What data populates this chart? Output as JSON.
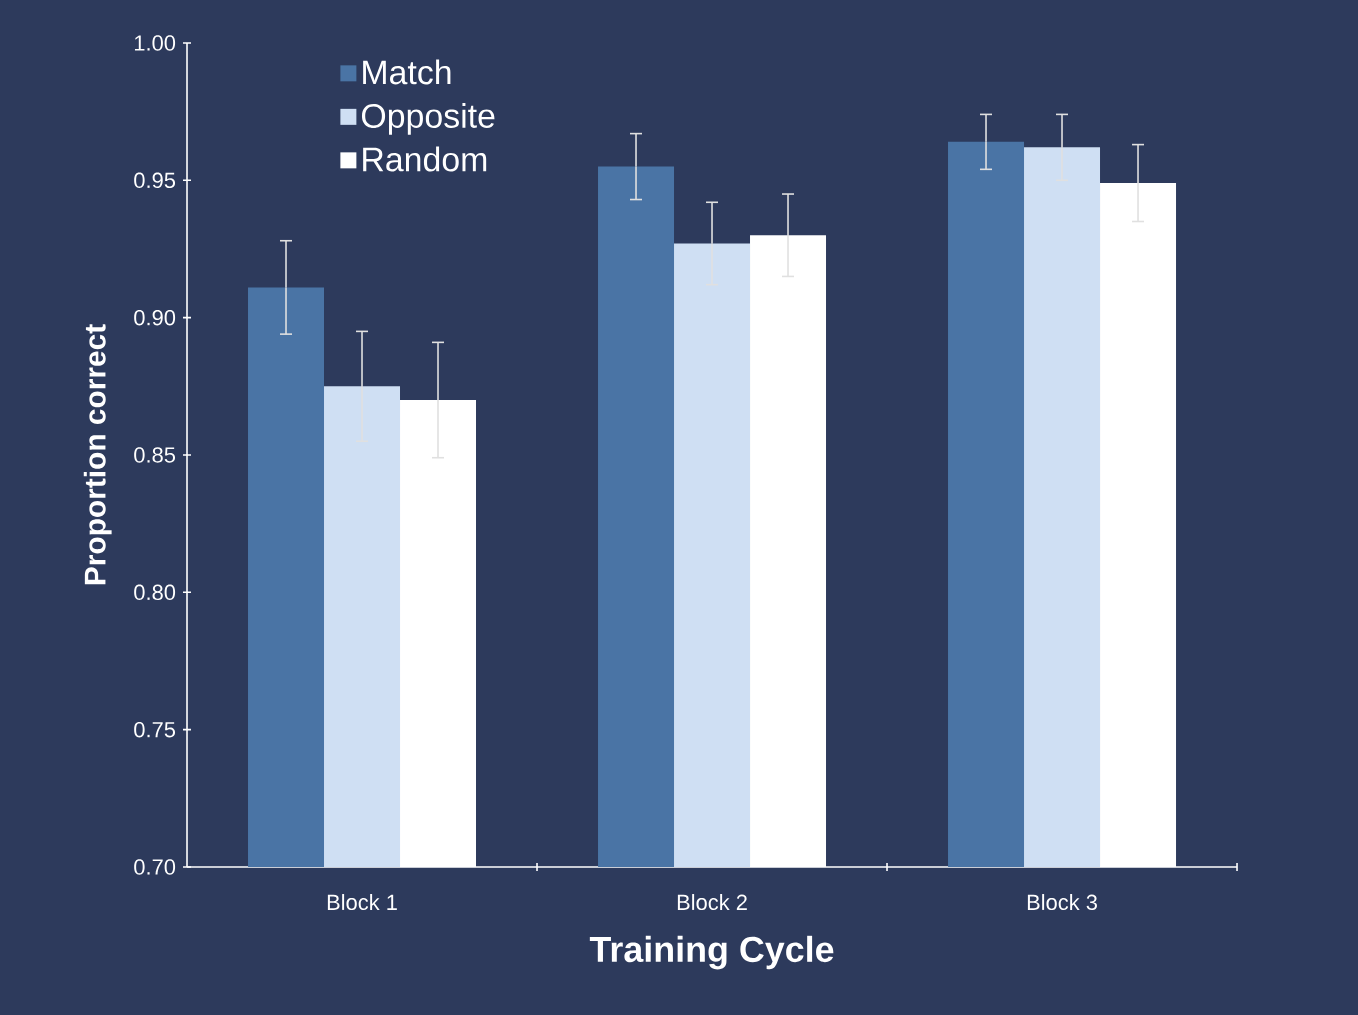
{
  "chart_data": {
    "type": "bar",
    "xlabel": "Training Cycle",
    "ylabel": "Proportion correct",
    "categories": [
      "Block 1",
      "Block 2",
      "Block 3"
    ],
    "series": [
      {
        "name": "Match",
        "color": "#4a74a5",
        "values": [
          0.911,
          0.955,
          0.964
        ],
        "errors": [
          0.017,
          0.012,
          0.01
        ]
      },
      {
        "name": "Opposite",
        "color": "#cfdff3",
        "values": [
          0.875,
          0.927,
          0.962
        ],
        "errors": [
          0.02,
          0.015,
          0.012
        ]
      },
      {
        "name": "Random",
        "color": "#ffffff",
        "values": [
          0.87,
          0.93,
          0.949
        ],
        "errors": [
          0.021,
          0.015,
          0.014
        ]
      }
    ],
    "ylim": [
      0.7,
      1.0
    ],
    "yticks": [
      {
        "value": 0.7,
        "label": "0.70"
      },
      {
        "value": 0.75,
        "label": "0.75"
      },
      {
        "value": 0.8,
        "label": "0.80"
      },
      {
        "value": 0.85,
        "label": "0.85"
      },
      {
        "value": 0.9,
        "label": "0.90"
      },
      {
        "value": 0.95,
        "label": "0.95"
      },
      {
        "value": 1.0,
        "label": "1.00"
      }
    ],
    "legend": "top left",
    "grid": false
  }
}
